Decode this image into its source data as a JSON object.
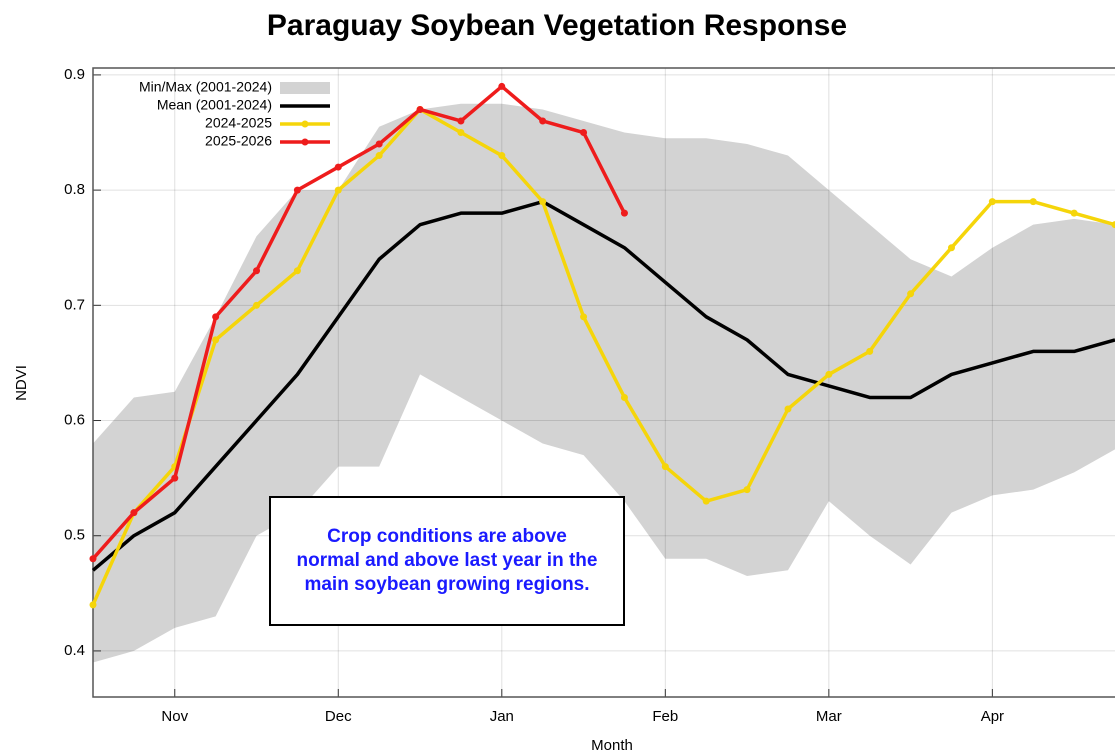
{
  "chart_data": {
    "type": "line",
    "title": "Paraguay Soybean Vegetation Response",
    "x_label": "Month",
    "y_label": "NDVI",
    "annotation": "Crop conditions are above normal and above last year in the main soybean growing regions.",
    "categories": [
      null,
      null,
      "Nov",
      null,
      null,
      null,
      "Dec",
      null,
      null,
      null,
      "Jan",
      null,
      null,
      null,
      "Feb",
      null,
      null,
      null,
      "Mar",
      null,
      null,
      null,
      "Apr",
      null,
      null,
      null
    ],
    "ylim": [
      0.36,
      0.906
    ],
    "yticks": [
      0.4,
      0.5,
      0.6,
      0.7,
      0.8,
      0.9
    ],
    "grid": true,
    "legend": "upper left",
    "band": {
      "name": "Min/Max (2001-2024)",
      "color": "#d3d3d3",
      "lower": [
        0.39,
        0.4,
        0.42,
        0.43,
        0.5,
        0.52,
        0.56,
        0.56,
        0.64,
        0.62,
        0.6,
        0.58,
        0.57,
        0.53,
        0.48,
        0.48,
        0.465,
        0.47,
        0.53,
        0.5,
        0.475,
        0.52,
        0.535,
        0.54,
        0.555,
        0.575
      ],
      "upper": [
        0.58,
        0.62,
        0.625,
        0.69,
        0.76,
        0.8,
        0.8,
        0.855,
        0.87,
        0.875,
        0.875,
        0.87,
        0.86,
        0.85,
        0.845,
        0.845,
        0.84,
        0.83,
        0.8,
        0.77,
        0.74,
        0.725,
        0.75,
        0.77,
        0.775,
        0.77
      ]
    },
    "series": [
      {
        "name": "Mean (2001-2024)",
        "color": "#000000",
        "markers": false,
        "values": [
          0.47,
          0.5,
          0.52,
          0.56,
          0.6,
          0.64,
          0.69,
          0.74,
          0.77,
          0.78,
          0.78,
          0.79,
          0.77,
          0.75,
          0.72,
          0.69,
          0.67,
          0.64,
          0.63,
          0.62,
          0.62,
          0.64,
          0.65,
          0.66,
          0.66,
          0.67
        ]
      },
      {
        "name": "2024-2025",
        "color": "#f5d50a",
        "markers": true,
        "values": [
          0.44,
          0.52,
          0.56,
          0.67,
          0.7,
          0.73,
          0.8,
          0.83,
          0.87,
          0.85,
          0.83,
          0.79,
          0.69,
          0.62,
          0.56,
          0.53,
          0.54,
          0.61,
          0.64,
          0.66,
          0.71,
          0.75,
          0.79,
          0.79,
          0.78,
          0.77
        ]
      },
      {
        "name": "2025-2026",
        "color": "#ee1c1c",
        "markers": true,
        "values": [
          0.48,
          0.52,
          0.55,
          0.69,
          0.73,
          0.8,
          0.82,
          0.84,
          0.87,
          0.86,
          0.89,
          0.86,
          0.85,
          0.78,
          null,
          null,
          null,
          null,
          null,
          null,
          null,
          null,
          null,
          null,
          null,
          null
        ]
      }
    ]
  }
}
